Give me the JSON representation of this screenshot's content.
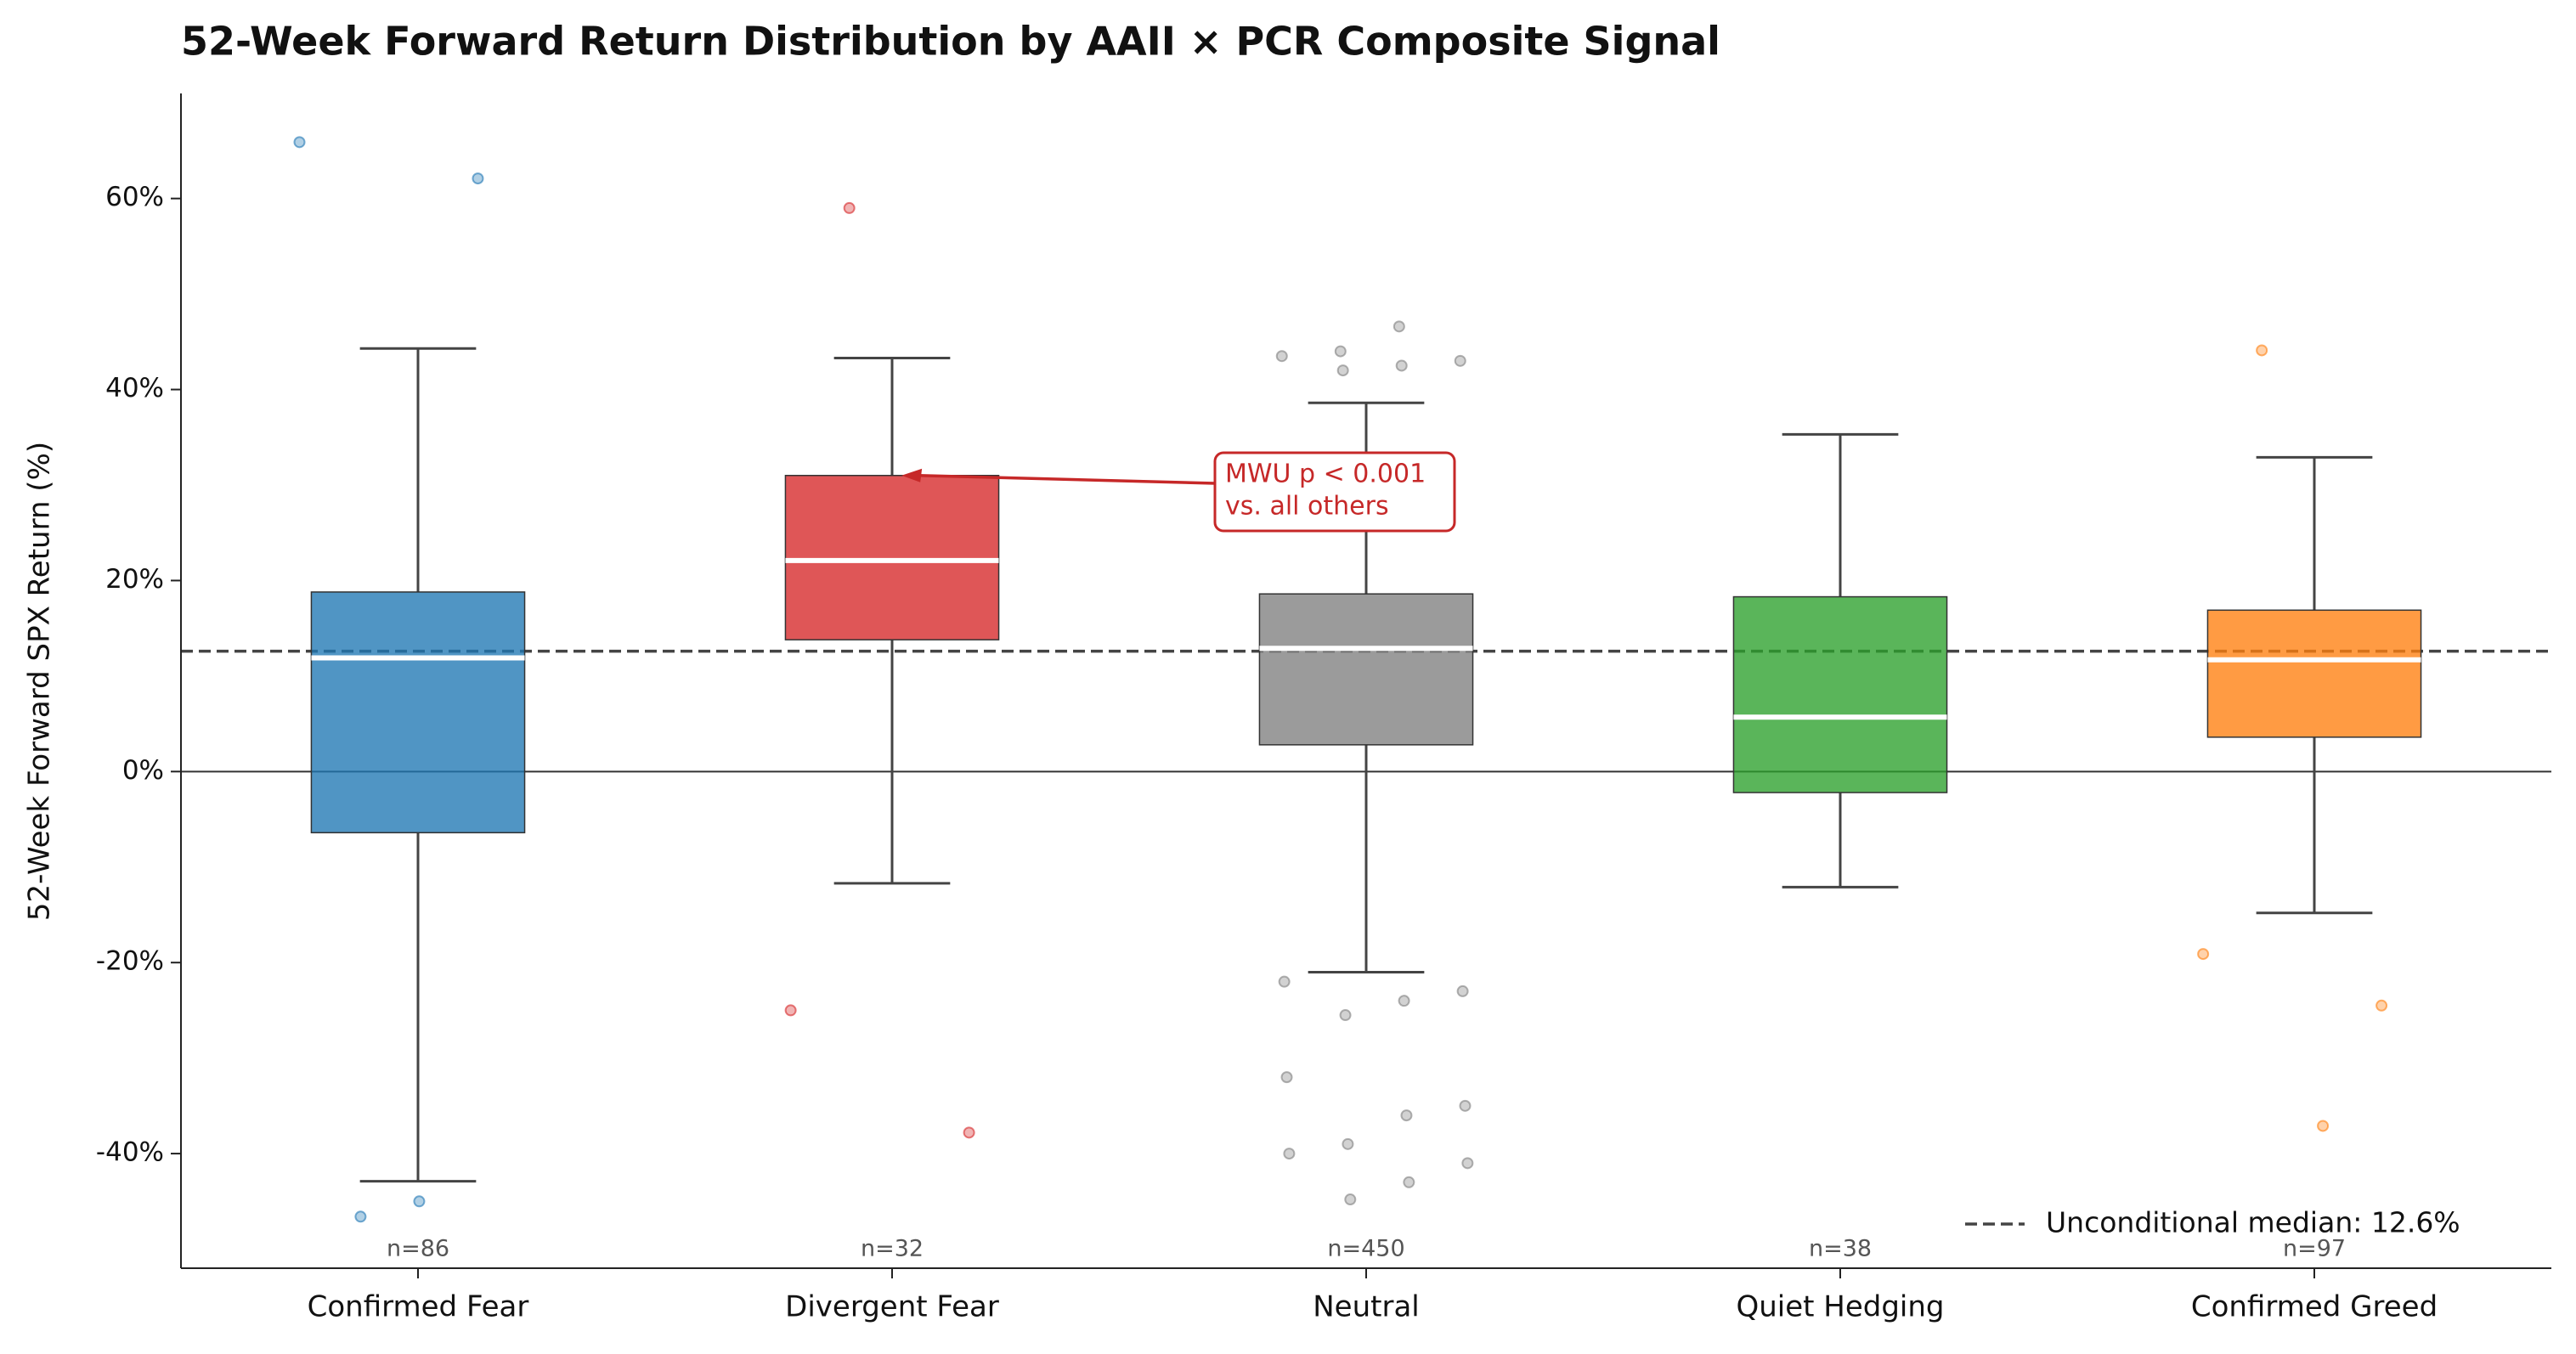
{
  "chart_data": {
    "type": "box",
    "title": "52-Week Forward Return Distribution by AAII × PCR Composite Signal",
    "ylabel": "52-Week Forward SPX Return (%)",
    "categories": [
      "Confirmed Fear",
      "Divergent Fear",
      "Neutral",
      "Quiet Hedging",
      "Confirmed Greed"
    ],
    "n_labels": [
      "n=86",
      "n=32",
      "n=450",
      "n=38",
      "n=97"
    ],
    "colors": [
      "#1f77b4",
      "#d62728",
      "#7f7f7f",
      "#2ca02c",
      "#ff7f0e"
    ],
    "boxes": [
      {
        "whislo": -42.9,
        "q1": -6.4,
        "med": 11.9,
        "q3": 18.8,
        "whishi": 44.3,
        "fliers": [
          65.9,
          62.1,
          -45.0,
          -46.6
        ]
      },
      {
        "whislo": -11.7,
        "q1": 13.8,
        "med": 22.1,
        "q3": 31.0,
        "whishi": 43.3,
        "fliers": [
          59.0,
          -25.0,
          -37.8
        ]
      },
      {
        "whislo": -21.0,
        "q1": 2.8,
        "med": 12.9,
        "q3": 18.6,
        "whishi": 38.6,
        "fliers": [
          46.6,
          44.0,
          43.5,
          43.0,
          42.5,
          42.0,
          -22.0,
          -23.0,
          -24.0,
          -25.5,
          -32.0,
          -35.0,
          -36.0,
          -39.0,
          -40.0,
          -41.0,
          -43.0,
          -44.8
        ]
      },
      {
        "whislo": -12.1,
        "q1": -2.2,
        "med": 5.7,
        "q3": 18.3,
        "whishi": 35.3,
        "fliers": []
      },
      {
        "whislo": -14.8,
        "q1": 3.6,
        "med": 11.7,
        "q3": 16.9,
        "whishi": 32.9,
        "fliers": [
          44.1,
          -19.1,
          -24.5,
          -37.1
        ]
      }
    ],
    "reference_line": {
      "value": 12.6,
      "label": "Unconditional median: 12.6%"
    },
    "annotation": {
      "lines": [
        "MWU p < 0.001",
        "vs. all others"
      ],
      "category": 1
    },
    "ylim": [
      -52,
      71
    ],
    "yticks": [
      {
        "value": -40,
        "label": "-40%"
      },
      {
        "value": -20,
        "label": "-20%"
      },
      {
        "value": 0,
        "label": "0%"
      },
      {
        "value": 20,
        "label": "20%"
      },
      {
        "value": 40,
        "label": "40%"
      },
      {
        "value": 60,
        "label": "60%"
      }
    ],
    "legend": "lower right"
  }
}
